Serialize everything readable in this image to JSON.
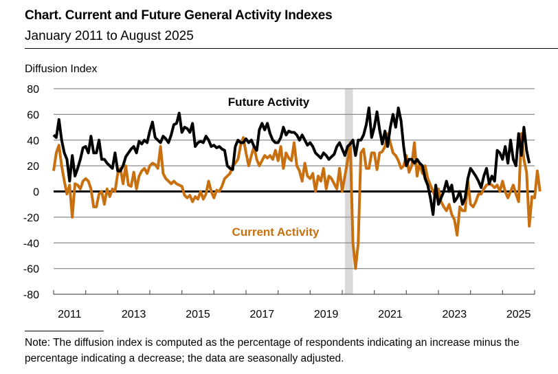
{
  "header": {
    "title": "Chart. Current and Future General Activity Indexes",
    "subtitle": "January 2011 to August 2025",
    "y_axis_label": "Diffusion Index"
  },
  "note": "Note: The diffusion index is computed as the percentage of respondents indicating an increase minus the percentage indicating a decrease; the data are seasonally adjusted.",
  "colors": {
    "future": "#000000",
    "current": "#c8700f",
    "recession": "#d9d9d9",
    "grid": "#8c8c8c"
  },
  "chart_data": {
    "type": "line",
    "title": "Chart. Current and Future General Activity Indexes",
    "subtitle": "January 2011 to August 2025",
    "xlabel": "",
    "ylabel": "Diffusion Index",
    "ylim": [
      -80,
      80
    ],
    "yticks": [
      "80",
      "60",
      "40",
      "20",
      "0",
      "-20",
      "-40",
      "-60",
      "-80"
    ],
    "xticks": [
      "2011",
      "2013",
      "2015",
      "2017",
      "2019",
      "2021",
      "2023",
      "2025"
    ],
    "x_start": "2011-01",
    "x_end": "2025-08",
    "grid": true,
    "recession_shading": {
      "start": "2020-02",
      "end": "2020-04"
    },
    "annotations": [
      {
        "text": "Future Activity",
        "series": "Future Activity",
        "placement": "top-center"
      },
      {
        "text": "Current Activity",
        "series": "Current Activity",
        "placement": "below-center"
      }
    ],
    "series": [
      {
        "name": "Future Activity",
        "color": "#000000",
        "values": [
          44,
          42,
          56,
          40,
          30,
          25,
          8,
          28,
          12,
          18,
          25,
          34,
          35,
          30,
          43,
          30,
          30,
          40,
          25,
          25,
          22,
          20,
          18,
          30,
          16,
          16,
          20,
          27,
          30,
          33,
          35,
          30,
          39,
          37,
          40,
          38,
          47,
          54,
          42,
          40,
          38,
          43,
          41,
          38,
          44,
          52,
          53,
          61,
          46,
          50,
          49,
          46,
          53,
          35,
          38,
          39,
          38,
          43,
          40,
          35,
          36,
          34,
          35,
          33,
          32,
          20,
          18,
          17,
          35,
          40,
          38,
          38,
          41,
          38,
          40,
          35,
          32,
          48,
          53,
          48,
          53,
          45,
          40,
          38,
          38,
          42,
          50,
          44,
          47,
          46,
          46,
          44,
          40,
          44,
          40,
          36,
          38,
          35,
          30,
          28,
          26,
          30,
          28,
          25,
          27,
          29,
          35,
          38,
          33,
          28,
          35,
          37,
          40,
          28,
          40,
          40,
          44,
          52,
          65,
          42,
          50,
          62,
          48,
          37,
          47,
          35,
          50,
          60,
          50,
          65,
          55,
          35,
          20,
          25,
          25,
          22,
          25,
          22,
          20,
          10,
          5,
          -5,
          -18,
          5,
          -10,
          -5,
          0,
          8,
          0,
          5,
          -8,
          -5,
          0,
          -10,
          -5,
          10,
          18,
          15,
          12,
          8,
          3,
          12,
          18,
          6,
          12,
          8,
          32,
          30,
          25,
          35,
          22,
          40,
          25,
          20,
          45,
          28,
          50,
          32,
          22
        ],
        "values_note": "monthly, estimated from chart pixels"
      },
      {
        "name": "Current Activity",
        "color": "#c8700f",
        "values": [
          16,
          30,
          36,
          20,
          8,
          -2,
          5,
          -20,
          6,
          5,
          2,
          8,
          10,
          8,
          2,
          -12,
          -12,
          -2,
          0,
          -10,
          2,
          -4,
          2,
          0,
          14,
          18,
          6,
          20,
          5,
          4,
          15,
          2,
          12,
          16,
          18,
          14,
          20,
          22,
          21,
          18,
          35,
          14,
          10,
          8,
          6,
          8,
          6,
          5,
          4,
          -3,
          -5,
          -3,
          -8,
          -4,
          -6,
          0,
          -6,
          -2,
          8,
          0,
          -5,
          1,
          0,
          4,
          10,
          12,
          14,
          20,
          22,
          25,
          36,
          42,
          30,
          20,
          28,
          35,
          25,
          20,
          24,
          28,
          26,
          28,
          25,
          32,
          24,
          35,
          18,
          30,
          26,
          24,
          38,
          20,
          16,
          8,
          22,
          12,
          10,
          14,
          0,
          12,
          8,
          18,
          2,
          12,
          10,
          6,
          2,
          18,
          0,
          12,
          24,
          38,
          -40,
          -60,
          -40,
          30,
          33,
          18,
          18,
          30,
          30,
          17,
          30,
          31,
          35,
          45,
          38,
          30,
          28,
          24,
          18,
          20,
          28,
          15,
          20,
          38,
          12,
          22,
          14,
          20,
          10,
          5,
          0,
          -5,
          2,
          -8,
          -12,
          -15,
          -10,
          -18,
          -22,
          -34,
          -12,
          -15,
          -15,
          8,
          -10,
          -12,
          -8,
          -2,
          -2,
          2,
          5,
          6,
          5,
          3,
          5,
          0,
          8,
          0,
          -5,
          0,
          5,
          -2,
          -8,
          45,
          25,
          15,
          -27,
          -4,
          -5,
          16,
          0
        ],
        "values_note": "monthly, estimated from chart pixels"
      }
    ]
  }
}
